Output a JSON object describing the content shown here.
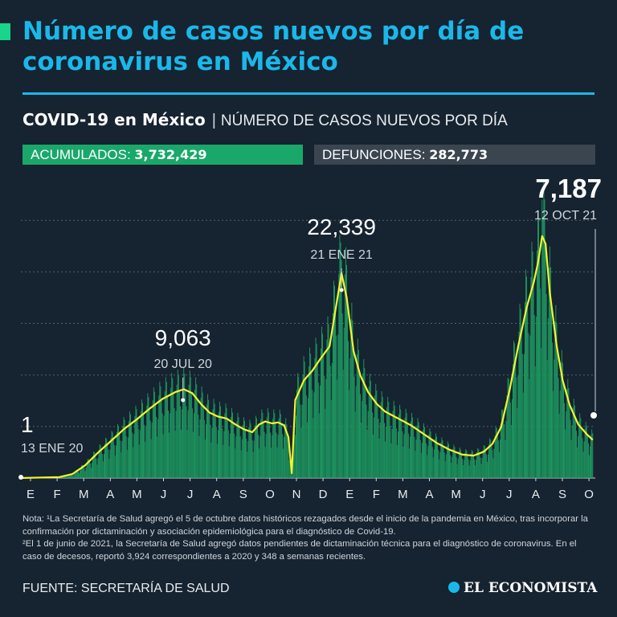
{
  "header": {
    "title": "Número de casos nuevos por día de coronavirus en México"
  },
  "subtitle": {
    "strong": "COVID-19 en México",
    "separator": "|",
    "light": "NÚMERO DE CASOS NUEVOS POR DÍA"
  },
  "stats": {
    "acumulados_label": "ACUMULADOS:",
    "acumulados_value": "3,732,429",
    "defunciones_label": "DEFUNCIONES:",
    "defunciones_value": "282,773"
  },
  "colors": {
    "background": "#162330",
    "title": "#1ab8ea",
    "bars": "#1f9e63",
    "trend_line": "#f2f52b",
    "acumulados_badge": "#1aa86a",
    "defunciones_badge": "#3a4550"
  },
  "chart_data": {
    "type": "bar",
    "xlabel": "",
    "ylabel": "",
    "ylim": [
      0,
      28000
    ],
    "grid": true,
    "x_tick_labels": [
      "E",
      "F",
      "M",
      "A",
      "M",
      "J",
      "J",
      "A",
      "S",
      "O",
      "N",
      "D",
      "E",
      "F",
      "M",
      "A",
      "M",
      "J",
      "J",
      "A",
      "S",
      "O"
    ],
    "annotations": [
      {
        "id": "start",
        "value": "1",
        "date": "13 ENE 20",
        "x": 0,
        "y": 1
      },
      {
        "id": "wave1",
        "value": "9,063",
        "date": "20 JUL 20",
        "x": 189,
        "y": 9063
      },
      {
        "id": "wave2",
        "value": "22,339",
        "date": "21 ENE 21",
        "x": 374,
        "y": 22339
      },
      {
        "id": "latest",
        "value": "7,187",
        "date": "12 OCT 21",
        "x": 638,
        "y": 7187
      }
    ],
    "series": [
      {
        "description": "7-day average",
        "points": [
          [
            0,
            0
          ],
          [
            45,
            100
          ],
          [
            60,
            400
          ],
          [
            75,
            1300
          ],
          [
            90,
            2600
          ],
          [
            105,
            3800
          ],
          [
            120,
            5000
          ],
          [
            135,
            6000
          ],
          [
            150,
            7100
          ],
          [
            165,
            8100
          ],
          [
            180,
            8800
          ],
          [
            190,
            9100
          ],
          [
            200,
            8700
          ],
          [
            210,
            7600
          ],
          [
            220,
            6700
          ],
          [
            230,
            6300
          ],
          [
            240,
            6100
          ],
          [
            250,
            5500
          ],
          [
            260,
            5000
          ],
          [
            270,
            4700
          ],
          [
            278,
            5500
          ],
          [
            285,
            5800
          ],
          [
            293,
            5600
          ],
          [
            300,
            5700
          ],
          [
            307,
            5400
          ],
          [
            312,
            4200
          ],
          [
            316,
            500
          ],
          [
            320,
            8000
          ],
          [
            330,
            10000
          ],
          [
            340,
            11000
          ],
          [
            350,
            12300
          ],
          [
            360,
            13500
          ],
          [
            368,
            17800
          ],
          [
            374,
            21000
          ],
          [
            380,
            18500
          ],
          [
            388,
            13000
          ],
          [
            396,
            10500
          ],
          [
            405,
            8800
          ],
          [
            415,
            7600
          ],
          [
            425,
            6800
          ],
          [
            440,
            6100
          ],
          [
            455,
            5400
          ],
          [
            470,
            4500
          ],
          [
            485,
            3600
          ],
          [
            500,
            2900
          ],
          [
            515,
            2400
          ],
          [
            528,
            2300
          ],
          [
            540,
            2700
          ],
          [
            550,
            3500
          ],
          [
            560,
            5200
          ],
          [
            570,
            9000
          ],
          [
            580,
            13500
          ],
          [
            590,
            17500
          ],
          [
            598,
            20000
          ],
          [
            603,
            22000
          ],
          [
            608,
            24800
          ],
          [
            612,
            24000
          ],
          [
            617,
            19000
          ],
          [
            625,
            13500
          ],
          [
            632,
            10000
          ],
          [
            640,
            7500
          ],
          [
            650,
            5500
          ],
          [
            660,
            4500
          ],
          [
            667,
            3900
          ]
        ]
      }
    ]
  },
  "note": {
    "line1": "Nota: ¹La Secretaría de Salud agregó el 5 de octubre datos históricos rezagados desde el inicio de la pandemia en México, tras incorporar la confirmación por dictaminación y asociación epidemiológica para el diagnóstico de Covid-19.",
    "line2": "²El 1 de junio de 2021, la Secretaría de Salud agregó datos pendientes de dictaminación técnica para el diagnóstico de coronavirus. En el caso de decesos, reportó 3,924 correspondientes a 2020 y 348 a semanas recientes."
  },
  "footer": {
    "source": "FUENTE: SECRETARÍA DE SALUD",
    "logo_text": "EL ECONOMISTA",
    "logo_icon": "el-economista-logo-icon"
  }
}
